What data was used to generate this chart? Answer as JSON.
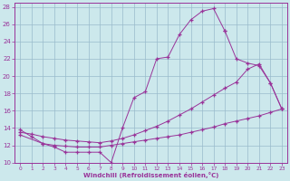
{
  "xlabel": "Windchill (Refroidissement éolien,°C)",
  "xlim_min": -0.5,
  "xlim_max": 23.5,
  "ylim_min": 10,
  "ylim_max": 28.5,
  "xticks": [
    0,
    1,
    2,
    3,
    4,
    5,
    6,
    7,
    8,
    9,
    10,
    11,
    12,
    13,
    14,
    15,
    16,
    17,
    18,
    19,
    20,
    21,
    22,
    23
  ],
  "yticks": [
    10,
    12,
    14,
    16,
    18,
    20,
    22,
    24,
    26,
    28
  ],
  "bg_color": "#cce8ec",
  "line_color": "#993399",
  "grid_color": "#99bbcc",
  "line1_x": [
    0,
    1,
    2,
    3,
    4,
    5,
    6,
    7,
    8,
    9,
    10,
    11,
    12,
    13,
    14,
    15,
    16,
    17,
    18
  ],
  "line1_y": [
    13.8,
    13.0,
    12.2,
    11.8,
    11.2,
    11.2,
    11.2,
    11.2,
    10.0,
    14.0,
    17.5,
    18.2,
    22.0,
    22.2,
    24.8,
    26.5,
    27.5,
    27.8,
    25.2
  ],
  "line2_x": [
    18,
    19,
    20,
    21,
    22,
    23
  ],
  "line2_y": [
    25.2,
    22.0,
    21.5,
    21.2,
    19.2,
    16.2
  ],
  "line3_x": [
    0,
    1,
    2,
    3,
    4,
    5,
    6,
    7,
    8,
    9,
    10,
    11,
    12,
    13,
    14,
    15,
    16,
    17,
    18,
    19,
    20,
    21,
    22,
    23
  ],
  "line3_y": [
    13.5,
    13.3,
    13.0,
    12.8,
    12.6,
    12.5,
    12.4,
    12.3,
    12.5,
    12.8,
    13.2,
    13.7,
    14.2,
    14.8,
    15.5,
    16.2,
    17.0,
    17.8,
    18.6,
    19.3,
    20.8,
    21.4,
    19.2,
    16.2
  ],
  "line4_x": [
    0,
    2,
    3,
    4,
    5,
    6,
    7,
    8,
    9,
    10,
    11,
    12,
    13,
    14,
    15,
    16,
    17,
    18,
    19,
    20,
    21,
    22,
    23
  ],
  "line4_y": [
    13.2,
    12.2,
    12.0,
    11.9,
    11.8,
    11.8,
    11.8,
    12.0,
    12.2,
    12.4,
    12.6,
    12.8,
    13.0,
    13.2,
    13.5,
    13.8,
    14.1,
    14.5,
    14.8,
    15.1,
    15.4,
    15.8,
    16.2
  ]
}
